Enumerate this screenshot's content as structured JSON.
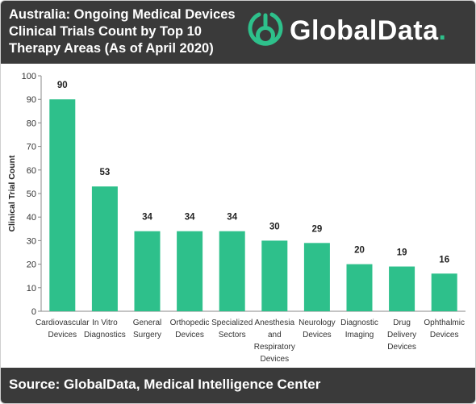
{
  "header": {
    "title": "Australia: Ongoing Medical Devices Clinical Trials Count by Top 10 Therapy Areas (As of April 2020)",
    "logo_text": "GlobalData",
    "logo_dot": "."
  },
  "footer": {
    "source": "Source: GlobalData, Medical Intelligence Center"
  },
  "colors": {
    "bar": "#2ec08b",
    "header_bg": "#3a3a3a",
    "accent": "#2ec08b"
  },
  "chart_data": {
    "type": "bar",
    "title": "Australia: Ongoing Medical Devices Clinical Trials Count by Top 10 Therapy Areas (As of April 2020)",
    "xlabel": "",
    "ylabel": "Clinical Trial Count",
    "ylim": [
      0,
      100
    ],
    "yticks": [
      0,
      10,
      20,
      30,
      40,
      50,
      60,
      70,
      80,
      90,
      100
    ],
    "grid": false,
    "categories": [
      [
        "Cardiovascular",
        "Devices"
      ],
      [
        "In Vitro",
        "Diagnostics"
      ],
      [
        "General",
        "Surgery"
      ],
      [
        "Orthopedic",
        "Devices"
      ],
      [
        "Specialized",
        "Sectors"
      ],
      [
        "Anesthesia",
        "and",
        "Respiratory",
        "Devices"
      ],
      [
        "Neurology",
        "Devices"
      ],
      [
        "Diagnostic",
        "Imaging"
      ],
      [
        "Drug",
        "Delivery",
        "Devices"
      ],
      [
        "Ophthalmic",
        "Devices"
      ]
    ],
    "values": [
      90,
      53,
      34,
      34,
      34,
      30,
      29,
      20,
      19,
      16
    ]
  }
}
